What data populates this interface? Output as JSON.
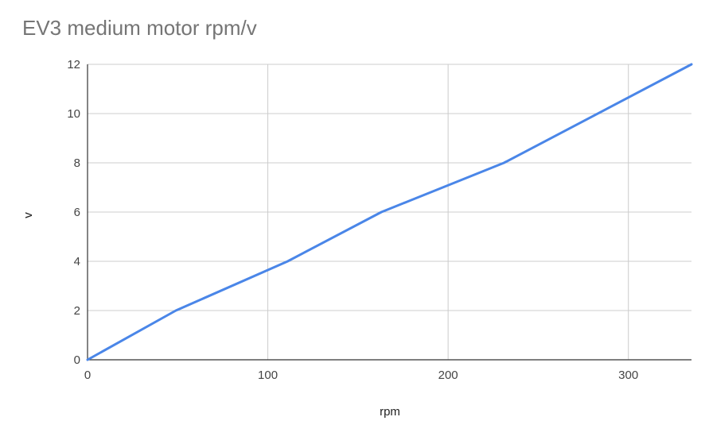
{
  "chart_data": {
    "type": "line",
    "title": "EV3 medium motor rpm/v",
    "xlabel": "rpm",
    "ylabel": "v",
    "xlim": [
      0,
      335
    ],
    "ylim": [
      0,
      12
    ],
    "x_ticks": [
      0,
      100,
      200,
      300
    ],
    "y_ticks": [
      0,
      2,
      4,
      6,
      8,
      10,
      12
    ],
    "grid": true,
    "legend": "none",
    "series": [
      {
        "color": "#4a86e8",
        "points": [
          {
            "x": 0,
            "y": 0
          },
          {
            "x": 49,
            "y": 2
          },
          {
            "x": 111,
            "y": 4
          },
          {
            "x": 163,
            "y": 6
          },
          {
            "x": 231,
            "y": 8
          },
          {
            "x": 335,
            "y": 12
          }
        ]
      }
    ]
  }
}
